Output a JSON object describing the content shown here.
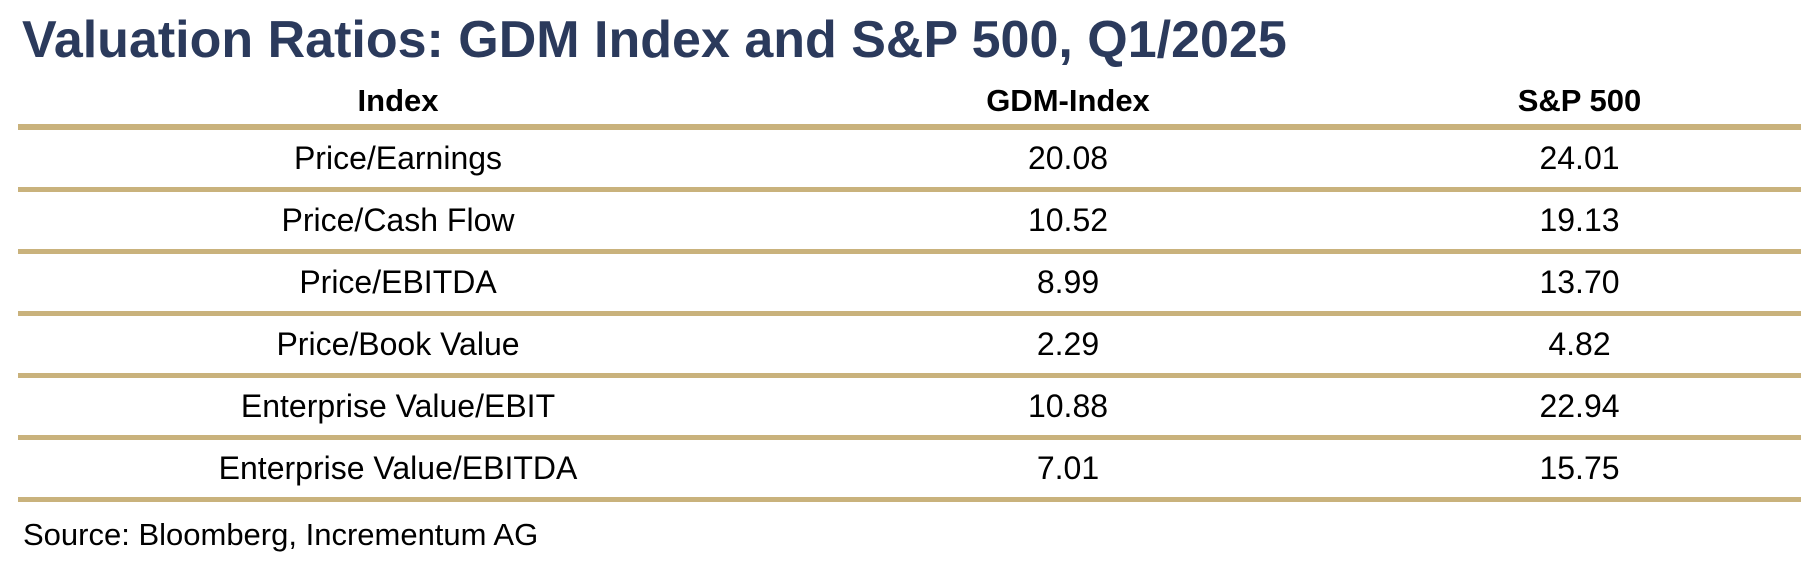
{
  "title": "Valuation Ratios: GDM Index and S&P 500, Q1/2025",
  "colors": {
    "title": "#2b3a5c",
    "rule": "#c9b27c"
  },
  "chart_data": {
    "type": "table",
    "title": "Valuation Ratios: GDM Index and S&P 500, Q1/2025",
    "columns": [
      "Index",
      "GDM-Index",
      "S&P 500"
    ],
    "rows": [
      [
        "Price/Earnings",
        "20.08",
        "24.01"
      ],
      [
        "Price/Cash Flow",
        "10.52",
        "19.13"
      ],
      [
        "Price/EBITDA",
        "8.99",
        "13.70"
      ],
      [
        "Price/Book Value",
        "2.29",
        "4.82"
      ],
      [
        "Enterprise Value/EBIT",
        "10.88",
        "22.94"
      ],
      [
        "Enterprise Value/EBITDA",
        "7.01",
        "15.75"
      ]
    ]
  },
  "source": "Source: Bloomberg, Incrementum AG"
}
